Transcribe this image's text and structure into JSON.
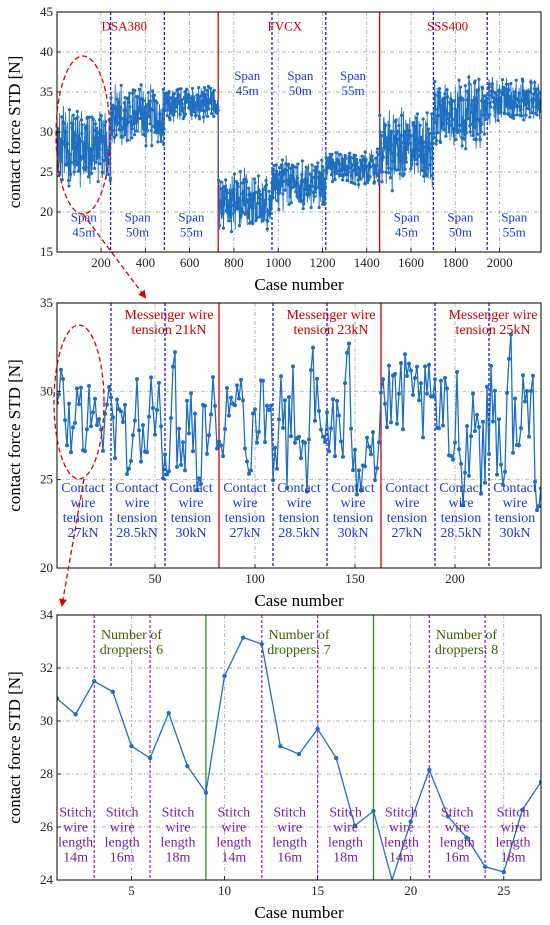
{
  "colors": {
    "series": "#1f6fc0",
    "grid": "#9a9a9a",
    "red": "#d40000",
    "blue": "#1a1ad0",
    "purple": "#9b2fc0",
    "green": "#2a8a2a",
    "ann_blue": "#1a3bd0",
    "ann_red": "#c80000",
    "ann_green": "#336600",
    "ann_purple": "#7a1fa0"
  },
  "chart_data": [
    {
      "type": "line",
      "xlabel": "Case number",
      "ylabel": "contact force STD [N]",
      "xlim": [
        1,
        2187
      ],
      "ylim": [
        15,
        45
      ],
      "xticks": [
        200,
        400,
        600,
        800,
        1000,
        1200,
        1400,
        1600,
        1800,
        2000
      ],
      "yticks": [
        15,
        20,
        25,
        30,
        35,
        40,
        45
      ],
      "grid": true,
      "series_spec": {
        "n_points": 2187,
        "segment_length": 243,
        "segment_means": [
          28,
          32,
          33.5,
          21.5,
          23.5,
          25.5,
          28,
          32.5,
          34
        ],
        "segment_amplitudes": [
          4.5,
          3.5,
          2.0,
          3.5,
          3.0,
          2.0,
          4.5,
          4.0,
          2.5
        ]
      },
      "vlines": [
        {
          "x": 243,
          "color": "blue"
        },
        {
          "x": 486,
          "color": "blue"
        },
        {
          "x": 729,
          "color": "red"
        },
        {
          "x": 972,
          "color": "blue"
        },
        {
          "x": 1215,
          "color": "blue"
        },
        {
          "x": 1458,
          "color": "red"
        },
        {
          "x": 1701,
          "color": "blue"
        },
        {
          "x": 1944,
          "color": "blue"
        }
      ],
      "annotations": [
        {
          "text": "DSA380",
          "x": 305,
          "y": 42.7,
          "color": "ann_red",
          "anchor": "middle"
        },
        {
          "text": "FVCX",
          "x": 1030,
          "y": 42.7,
          "color": "ann_red",
          "anchor": "middle"
        },
        {
          "text": "SSS400",
          "x": 1765,
          "y": 42.7,
          "color": "ann_red",
          "anchor": "middle"
        },
        {
          "text": "Span\n45m",
          "x": 860,
          "y": 36.5,
          "color": "ann_blue",
          "anchor": "middle"
        },
        {
          "text": "Span\n50m",
          "x": 1100,
          "y": 36.5,
          "color": "ann_blue",
          "anchor": "middle"
        },
        {
          "text": "Span\n55m",
          "x": 1338,
          "y": 36.5,
          "color": "ann_blue",
          "anchor": "middle"
        },
        {
          "text": "Span\n45m",
          "x": 122,
          "y": 18.8,
          "color": "ann_blue",
          "anchor": "middle"
        },
        {
          "text": "Span\n50m",
          "x": 365,
          "y": 18.8,
          "color": "ann_blue",
          "anchor": "middle"
        },
        {
          "text": "Span\n55m",
          "x": 608,
          "y": 18.8,
          "color": "ann_blue",
          "anchor": "middle"
        },
        {
          "text": "Span\n45m",
          "x": 1580,
          "y": 18.8,
          "color": "ann_blue",
          "anchor": "middle"
        },
        {
          "text": "Span\n50m",
          "x": 1823,
          "y": 18.8,
          "color": "ann_blue",
          "anchor": "middle"
        },
        {
          "text": "Span\n55m",
          "x": 2066,
          "y": 18.8,
          "color": "ann_blue",
          "anchor": "middle"
        }
      ]
    },
    {
      "type": "line",
      "xlabel": "Case number",
      "ylabel": "contact force STD [N]",
      "xlim": [
        1,
        243
      ],
      "ylim": [
        20,
        35
      ],
      "xticks": [
        50,
        100,
        150,
        200
      ],
      "yticks": [
        20,
        25,
        30,
        35
      ],
      "grid": true,
      "series_spec": {
        "n_points": 243,
        "segment_length": 27,
        "segment_means": [
          28.5,
          28.0,
          28.5,
          29.0,
          28.0,
          28.0,
          29.0,
          28.0,
          28.5
        ],
        "segment_amplitudes": [
          3.0,
          3.5,
          4.0,
          3.5,
          4.0,
          4.0,
          3.5,
          4.0,
          4.5
        ]
      },
      "vlines": [
        {
          "x": 28,
          "color": "blue"
        },
        {
          "x": 55,
          "color": "blue"
        },
        {
          "x": 82,
          "color": "red"
        },
        {
          "x": 109,
          "color": "blue"
        },
        {
          "x": 136,
          "color": "blue"
        },
        {
          "x": 163,
          "color": "red"
        },
        {
          "x": 190,
          "color": "blue"
        },
        {
          "x": 217,
          "color": "blue"
        }
      ],
      "annotations": [
        {
          "text": "Messenger wire\ntension 21kN",
          "x": 57,
          "y": 34.1,
          "color": "ann_red",
          "anchor": "middle"
        },
        {
          "text": "Messenger wire\ntension 23kN",
          "x": 138,
          "y": 34.1,
          "color": "ann_red",
          "anchor": "middle"
        },
        {
          "text": "Messenger wire\ntension 25kN",
          "x": 219,
          "y": 34.1,
          "color": "ann_red",
          "anchor": "middle"
        },
        {
          "text": "Contact\nwire\ntension\n27kN",
          "x": 14,
          "y": 24.3,
          "color": "ann_blue",
          "anchor": "middle"
        },
        {
          "text": "Contact\nwire\ntension\n28.5kN",
          "x": 41,
          "y": 24.3,
          "color": "ann_blue",
          "anchor": "middle"
        },
        {
          "text": "Contact\nwire\ntension\n30kN",
          "x": 68,
          "y": 24.3,
          "color": "ann_blue",
          "anchor": "middle"
        },
        {
          "text": "Contact\nwire\ntension\n27kN",
          "x": 95,
          "y": 24.3,
          "color": "ann_blue",
          "anchor": "middle"
        },
        {
          "text": "Contact\nwire\ntension\n28.5kN",
          "x": 122,
          "y": 24.3,
          "color": "ann_blue",
          "anchor": "middle"
        },
        {
          "text": "Contact\nwire\ntension\n30kN",
          "x": 149,
          "y": 24.3,
          "color": "ann_blue",
          "anchor": "middle"
        },
        {
          "text": "Contact\nwire\ntension\n27kN",
          "x": 176,
          "y": 24.3,
          "color": "ann_blue",
          "anchor": "middle"
        },
        {
          "text": "Contact\nwire\ntension\n28.5kN",
          "x": 203,
          "y": 24.3,
          "color": "ann_blue",
          "anchor": "middle"
        },
        {
          "text": "Contact\nwire\ntension\n30kN",
          "x": 230,
          "y": 24.3,
          "color": "ann_blue",
          "anchor": "middle"
        }
      ]
    },
    {
      "type": "line",
      "xlabel": "Case number",
      "ylabel": "contact force STD [N]",
      "xlim": [
        1,
        27
      ],
      "ylim": [
        24,
        34
      ],
      "xticks": [
        5,
        10,
        15,
        20,
        25
      ],
      "yticks": [
        24,
        26,
        28,
        30,
        32,
        34
      ],
      "grid": true,
      "x": [
        1,
        2,
        3,
        4,
        5,
        6,
        7,
        8,
        9,
        10,
        11,
        12,
        13,
        14,
        15,
        16,
        17,
        18,
        19,
        20,
        21,
        22,
        23,
        24,
        25,
        26,
        27
      ],
      "y": [
        30.85,
        30.25,
        31.5,
        31.1,
        29.05,
        28.6,
        30.3,
        28.3,
        27.3,
        31.7,
        33.15,
        32.9,
        29.05,
        28.75,
        29.7,
        28.6,
        26.05,
        26.6,
        23.9,
        26.2,
        28.15,
        26.4,
        25.6,
        24.5,
        24.3,
        26.65,
        27.7
      ],
      "vlines": [
        {
          "x": 3,
          "color": "purple"
        },
        {
          "x": 6,
          "color": "purple"
        },
        {
          "x": 9,
          "color": "green"
        },
        {
          "x": 12,
          "color": "purple"
        },
        {
          "x": 15,
          "color": "purple"
        },
        {
          "x": 18,
          "color": "green"
        },
        {
          "x": 21,
          "color": "purple"
        },
        {
          "x": 24,
          "color": "purple"
        }
      ],
      "annotations": [
        {
          "text": "Number of\ndroppers: 6",
          "x": 5.0,
          "y": 33.1,
          "color": "ann_green",
          "anchor": "middle"
        },
        {
          "text": "Number of\ndroppers: 7",
          "x": 14.0,
          "y": 33.1,
          "color": "ann_green",
          "anchor": "middle"
        },
        {
          "text": "Number of\ndroppers: 8",
          "x": 23.0,
          "y": 33.1,
          "color": "ann_green",
          "anchor": "middle"
        },
        {
          "text": "Stitch\nwire\nlength\n14m",
          "x": 2.0,
          "y": 26.4,
          "color": "ann_purple",
          "anchor": "middle"
        },
        {
          "text": "Stitch\nwire\nlength\n16m",
          "x": 4.5,
          "y": 26.4,
          "color": "ann_purple",
          "anchor": "middle"
        },
        {
          "text": "Stitch\nwire\nlength\n18m",
          "x": 7.5,
          "y": 26.4,
          "color": "ann_purple",
          "anchor": "middle"
        },
        {
          "text": "Stitch\nwire\nlength\n14m",
          "x": 10.5,
          "y": 26.4,
          "color": "ann_purple",
          "anchor": "middle"
        },
        {
          "text": "Stitch\nwire\nlength\n16m",
          "x": 13.5,
          "y": 26.4,
          "color": "ann_purple",
          "anchor": "middle"
        },
        {
          "text": "Stitch\nwire\nlength\n18m",
          "x": 16.5,
          "y": 26.4,
          "color": "ann_purple",
          "anchor": "middle"
        },
        {
          "text": "Stitch\nwire\nlength\n14m",
          "x": 19.5,
          "y": 26.4,
          "color": "ann_purple",
          "anchor": "middle"
        },
        {
          "text": "Stitch\nwire\nlength\n16m",
          "x": 22.5,
          "y": 26.4,
          "color": "ann_purple",
          "anchor": "middle"
        },
        {
          "text": "Stitch\nwire\nlength\n18m",
          "x": 25.5,
          "y": 26.4,
          "color": "ann_purple",
          "anchor": "middle"
        }
      ]
    }
  ]
}
